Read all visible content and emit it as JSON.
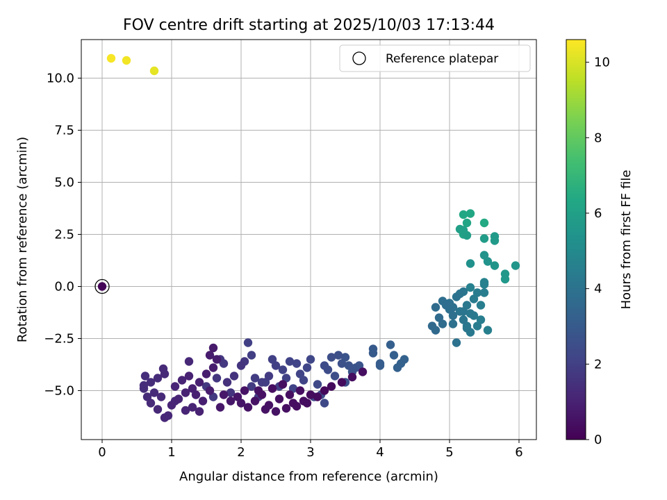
{
  "chart_data": {
    "type": "scatter",
    "title": "FOV centre drift starting at 2025/10/03 17:13:44",
    "xlabel": "Angular distance from reference (arcmin)",
    "ylabel": "Rotation from reference (arcmin)",
    "xlim": [
      -0.3,
      6.25
    ],
    "ylim": [
      -7.35,
      11.85
    ],
    "xticks": [
      0,
      1,
      2,
      3,
      4,
      5,
      6
    ],
    "xtick_labels": [
      "0",
      "1",
      "2",
      "3",
      "4",
      "5",
      "6"
    ],
    "yticks": [
      -5,
      -2.5,
      0,
      2.5,
      5,
      7.5,
      10
    ],
    "ytick_labels": [
      "−5.0",
      "−2.5",
      "0.0",
      "2.5",
      "5.0",
      "7.5",
      "10.0"
    ],
    "grid": true,
    "colorbar": {
      "label": "Hours from first FF file",
      "colormap": "viridis",
      "range": [
        0,
        10.6
      ],
      "ticks": [
        0,
        2,
        4,
        6,
        8,
        10
      ],
      "tick_labels": [
        "0",
        "2",
        "4",
        "6",
        "8",
        "10"
      ]
    },
    "legend": {
      "position": "top-right",
      "label": "Reference platepar"
    },
    "reference_point": {
      "x": 0,
      "y": 0
    },
    "points": [
      [
        0,
        0,
        0.1
      ],
      [
        3.2,
        -5.0,
        0.2
      ],
      [
        3.3,
        -4.8,
        0.25
      ],
      [
        3.45,
        -4.6,
        0.3
      ],
      [
        3.6,
        -4.35,
        0.35
      ],
      [
        3.75,
        -4.1,
        0.4
      ],
      [
        3.1,
        -5.3,
        0.3
      ],
      [
        2.95,
        -5.6,
        0.35
      ],
      [
        2.8,
        -5.75,
        0.4
      ],
      [
        2.65,
        -5.85,
        0.45
      ],
      [
        2.5,
        -6.0,
        0.5
      ],
      [
        2.4,
        -5.7,
        0.5
      ],
      [
        2.55,
        -5.4,
        0.45
      ],
      [
        2.7,
        -5.2,
        0.42
      ],
      [
        2.85,
        -5.0,
        0.4
      ],
      [
        2.6,
        -4.7,
        0.4
      ],
      [
        2.45,
        -4.9,
        0.42
      ],
      [
        2.3,
        -5.2,
        0.48
      ],
      [
        2.2,
        -5.5,
        0.5
      ],
      [
        2.1,
        -5.8,
        0.55
      ],
      [
        2.0,
        -5.6,
        0.6
      ],
      [
        1.95,
        -5.3,
        0.6
      ],
      [
        2.05,
        -5.0,
        0.55
      ],
      [
        2.35,
        -5.9,
        0.5
      ],
      [
        2.9,
        -5.5,
        0.38
      ],
      [
        3.0,
        -5.2,
        0.33
      ],
      [
        2.75,
        -5.6,
        0.4
      ],
      [
        2.25,
        -5.0,
        0.5
      ],
      [
        1.85,
        -5.5,
        0.65
      ],
      [
        1.75,
        -5.2,
        0.7
      ],
      [
        1.7,
        -5.8,
        0.7
      ],
      [
        1.6,
        -2.95,
        0.75
      ],
      [
        1.55,
        -3.3,
        0.8
      ],
      [
        1.65,
        -3.5,
        0.8
      ],
      [
        1.6,
        -3.9,
        0.82
      ],
      [
        1.5,
        -4.2,
        0.85
      ],
      [
        1.4,
        -4.6,
        0.9
      ],
      [
        1.3,
        -4.9,
        0.95
      ],
      [
        1.2,
        -5.1,
        1.0
      ],
      [
        1.1,
        -5.4,
        1.05
      ],
      [
        1.0,
        -5.7,
        1.1
      ],
      [
        0.95,
        -6.2,
        1.15
      ],
      [
        0.9,
        -6.3,
        1.15
      ],
      [
        0.8,
        -5.9,
        1.2
      ],
      [
        0.7,
        -5.6,
        1.25
      ],
      [
        0.65,
        -5.3,
        1.3
      ],
      [
        0.6,
        -4.9,
        1.35
      ],
      [
        0.7,
        -4.6,
        1.35
      ],
      [
        0.8,
        -4.4,
        1.3
      ],
      [
        0.9,
        -4.2,
        1.25
      ],
      [
        0.88,
        -3.95,
        1.25
      ],
      [
        0.6,
        -4.75,
        1.4
      ],
      [
        0.62,
        -4.3,
        1.4
      ],
      [
        0.75,
        -5.1,
        1.3
      ],
      [
        0.85,
        -5.3,
        1.25
      ],
      [
        1.05,
        -4.8,
        1.1
      ],
      [
        1.15,
        -4.5,
        1.05
      ],
      [
        1.25,
        -4.3,
        1.0
      ],
      [
        1.35,
        -5.2,
        0.95
      ],
      [
        1.45,
        -5.5,
        0.9
      ],
      [
        1.55,
        -5.0,
        0.85
      ],
      [
        1.25,
        -3.6,
        1.2
      ],
      [
        1.3,
        -5.8,
        1.05
      ],
      [
        1.4,
        -6.0,
        1.0
      ],
      [
        1.2,
        -5.95,
        1.1
      ],
      [
        1.05,
        -5.5,
        1.15
      ],
      [
        1.8,
        -4.6,
        1.5
      ],
      [
        1.9,
        -4.3,
        1.55
      ],
      [
        2.0,
        -3.8,
        1.6
      ],
      [
        2.05,
        -3.6,
        1.65
      ],
      [
        1.7,
        -3.5,
        1.7
      ],
      [
        1.75,
        -3.7,
        1.72
      ],
      [
        1.65,
        -4.4,
        1.7
      ],
      [
        1.5,
        -4.8,
        1.75
      ],
      [
        1.6,
        -5.3,
        1.75
      ],
      [
        1.85,
        -5.1,
        1.6
      ],
      [
        2.1,
        -2.7,
        2.0
      ],
      [
        2.15,
        -3.3,
        1.95
      ],
      [
        2.2,
        -4.4,
        1.9
      ],
      [
        2.3,
        -4.6,
        1.88
      ],
      [
        2.4,
        -4.3,
        1.85
      ],
      [
        2.45,
        -3.5,
        2.0
      ],
      [
        2.5,
        -3.8,
        2.0
      ],
      [
        2.6,
        -4.0,
        2.05
      ],
      [
        2.65,
        -4.4,
        2.05
      ],
      [
        2.7,
        -3.6,
        2.1
      ],
      [
        2.8,
        -3.7,
        2.12
      ],
      [
        2.85,
        -4.2,
        2.15
      ],
      [
        2.9,
        -4.5,
        2.15
      ],
      [
        2.95,
        -3.9,
        2.2
      ],
      [
        3.0,
        -3.5,
        2.25
      ],
      [
        3.1,
        -4.7,
        2.3
      ],
      [
        3.05,
        -5.3,
        2.3
      ],
      [
        3.15,
        -5.2,
        2.35
      ],
      [
        3.2,
        -3.8,
        2.4
      ],
      [
        3.25,
        -4.0,
        2.45
      ],
      [
        3.3,
        -3.4,
        2.5
      ],
      [
        3.35,
        -4.3,
        2.5
      ],
      [
        3.4,
        -3.3,
        2.55
      ],
      [
        3.45,
        -3.7,
        2.6
      ],
      [
        3.5,
        -4.6,
        2.6
      ],
      [
        3.55,
        -3.8,
        2.65
      ],
      [
        3.6,
        -4.1,
        2.7
      ],
      [
        3.65,
        -3.9,
        2.75
      ],
      [
        3.7,
        -3.8,
        2.75
      ],
      [
        3.5,
        -3.4,
        2.7
      ],
      [
        3.9,
        -3.0,
        3.0
      ],
      [
        3.9,
        -3.2,
        3.0
      ],
      [
        4.0,
        -3.8,
        3.1
      ],
      [
        4.0,
        -3.7,
        3.1
      ],
      [
        4.15,
        -2.8,
        3.2
      ],
      [
        4.2,
        -3.3,
        3.2
      ],
      [
        4.25,
        -3.9,
        3.25
      ],
      [
        4.3,
        -3.7,
        3.3
      ],
      [
        4.35,
        -3.5,
        3.3
      ],
      [
        2.55,
        -4.8,
        2.0
      ],
      [
        2.35,
        -4.6,
        1.95
      ],
      [
        2.75,
        -4.9,
        2.1
      ],
      [
        2.25,
        -5.3,
        1.9
      ],
      [
        3.2,
        -5.6,
        2.3
      ],
      [
        2.15,
        -4.8,
        1.85
      ],
      [
        4.75,
        -1.9,
        3.6
      ],
      [
        4.8,
        -2.1,
        3.6
      ],
      [
        4.8,
        -1.0,
        3.7
      ],
      [
        4.85,
        -1.5,
        3.7
      ],
      [
        4.9,
        -1.8,
        3.75
      ],
      [
        4.9,
        -0.7,
        3.8
      ],
      [
        4.95,
        -0.9,
        3.8
      ],
      [
        5.0,
        -1.1,
        3.85
      ],
      [
        5.0,
        -0.8,
        3.9
      ],
      [
        5.05,
        -1.4,
        3.9
      ],
      [
        5.05,
        -1.8,
        3.95
      ],
      [
        5.1,
        -0.5,
        4.0
      ],
      [
        5.1,
        -2.7,
        4.0
      ],
      [
        5.15,
        -0.35,
        4.05
      ],
      [
        5.15,
        -1.2,
        4.1
      ],
      [
        5.2,
        -0.25,
        4.1
      ],
      [
        5.2,
        -1.6,
        4.15
      ],
      [
        5.25,
        -2.0,
        4.2
      ],
      [
        5.25,
        -0.9,
        4.2
      ],
      [
        5.3,
        -1.3,
        4.25
      ],
      [
        5.3,
        -2.2,
        4.3
      ],
      [
        5.35,
        -1.4,
        4.3
      ],
      [
        5.35,
        -0.6,
        4.35
      ],
      [
        5.4,
        -1.9,
        4.4
      ],
      [
        5.4,
        -0.3,
        4.4
      ],
      [
        5.45,
        -1.6,
        4.45
      ],
      [
        5.45,
        -0.9,
        4.5
      ],
      [
        5.5,
        -0.3,
        4.5
      ],
      [
        5.55,
        -2.1,
        4.55
      ],
      [
        5.3,
        -0.05,
        4.6
      ],
      [
        5.5,
        0.1,
        4.6
      ],
      [
        5.5,
        0.2,
        4.65
      ],
      [
        5.25,
        -1.9,
        4.2
      ],
      [
        5.2,
        -1.2,
        4.1
      ],
      [
        5.05,
        -1.0,
        3.9
      ],
      [
        5.3,
        1.1,
        5.3
      ],
      [
        5.5,
        1.5,
        5.4
      ],
      [
        5.55,
        1.2,
        5.4
      ],
      [
        5.65,
        1.0,
        5.5
      ],
      [
        5.8,
        0.35,
        5.6
      ],
      [
        5.8,
        0.6,
        5.6
      ],
      [
        5.95,
        1.0,
        5.5
      ],
      [
        5.65,
        2.2,
        5.7
      ],
      [
        5.65,
        2.4,
        5.7
      ],
      [
        5.5,
        2.3,
        5.8
      ],
      [
        5.25,
        2.45,
        5.9
      ],
      [
        5.2,
        2.7,
        6.0
      ],
      [
        5.2,
        2.5,
        6.1
      ],
      [
        5.25,
        3.05,
        6.2
      ],
      [
        5.3,
        3.5,
        6.3
      ],
      [
        5.2,
        3.45,
        6.3
      ],
      [
        5.5,
        3.05,
        6.4
      ],
      [
        5.15,
        2.75,
        6.0
      ],
      [
        0.13,
        10.95,
        10.5
      ],
      [
        0.35,
        10.85,
        10.4
      ],
      [
        0.75,
        10.35,
        10.2
      ]
    ]
  }
}
